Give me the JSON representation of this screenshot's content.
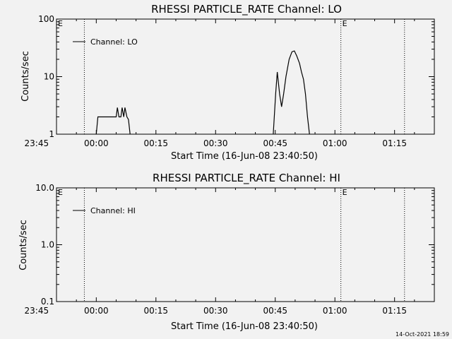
{
  "chart_data": [
    {
      "type": "line",
      "title": "RHESSI PARTICLE_RATE Channel: LO",
      "xlabel": "Start Time (16-Jun-08 23:40:50)",
      "ylabel": "Counts/sec",
      "yscale": "log",
      "ylim": [
        1,
        100
      ],
      "y_ticks": [
        "1",
        "10",
        "100"
      ],
      "xlim_minutes": [
        -10,
        85
      ],
      "x_ticks": [
        "23:45",
        "00:00",
        "00:15",
        "00:30",
        "00:45",
        "01:00",
        "01:15"
      ],
      "legend": "top-left",
      "series": [
        {
          "name": "Channel: LO",
          "color": "#000000",
          "segments": [
            [
              [
                0,
                1
              ],
              [
                0.4,
                2
              ],
              [
                5,
                2
              ],
              [
                5.3,
                2.9
              ],
              [
                5.7,
                2
              ],
              [
                6.2,
                2
              ],
              [
                6.5,
                2.9
              ],
              [
                6.9,
                2
              ],
              [
                7.2,
                2.9
              ],
              [
                7.7,
                2
              ],
              [
                8.1,
                1.8
              ],
              [
                8.5,
                1
              ]
            ],
            [
              [
                44.5,
                1
              ],
              [
                45.1,
                5
              ],
              [
                45.5,
                12
              ],
              [
                46.1,
                5
              ],
              [
                46.6,
                3
              ],
              [
                47.1,
                5
              ],
              [
                47.7,
                10
              ],
              [
                48.5,
                20
              ],
              [
                49.2,
                27
              ],
              [
                49.8,
                28
              ],
              [
                50.4,
                23
              ],
              [
                51.1,
                17
              ],
              [
                51.6,
                12
              ],
              [
                52.1,
                9
              ],
              [
                52.6,
                5
              ],
              [
                53.1,
                2
              ],
              [
                53.6,
                1
              ]
            ]
          ]
        }
      ],
      "vlines_minutes": [
        -3,
        61.5,
        77.5
      ],
      "markers": [
        {
          "text": "E",
          "x_minutes": -10
        },
        {
          "text": "E",
          "x_minutes": 61.5
        }
      ]
    },
    {
      "type": "line",
      "title": "RHESSI PARTICLE_RATE Channel: HI",
      "xlabel": "Start Time (16-Jun-08 23:40:50)",
      "ylabel": "Counts/sec",
      "yscale": "log",
      "ylim": [
        0.1,
        10
      ],
      "y_ticks": [
        "0.1",
        "1.0",
        "10.0"
      ],
      "xlim_minutes": [
        -10,
        85
      ],
      "x_ticks": [
        "23:45",
        "00:00",
        "00:15",
        "00:30",
        "00:45",
        "01:00",
        "01:15"
      ],
      "legend": "top-left",
      "series": [
        {
          "name": "Channel: HI",
          "color": "#000000",
          "segments": []
        }
      ],
      "vlines_minutes": [
        -3,
        61.5,
        77.5
      ],
      "markers": [
        {
          "text": "E",
          "x_minutes": -10
        },
        {
          "text": "E",
          "x_minutes": 61.5
        }
      ]
    }
  ],
  "footer": {
    "timestamp": "14-Oct-2021 18:59"
  }
}
